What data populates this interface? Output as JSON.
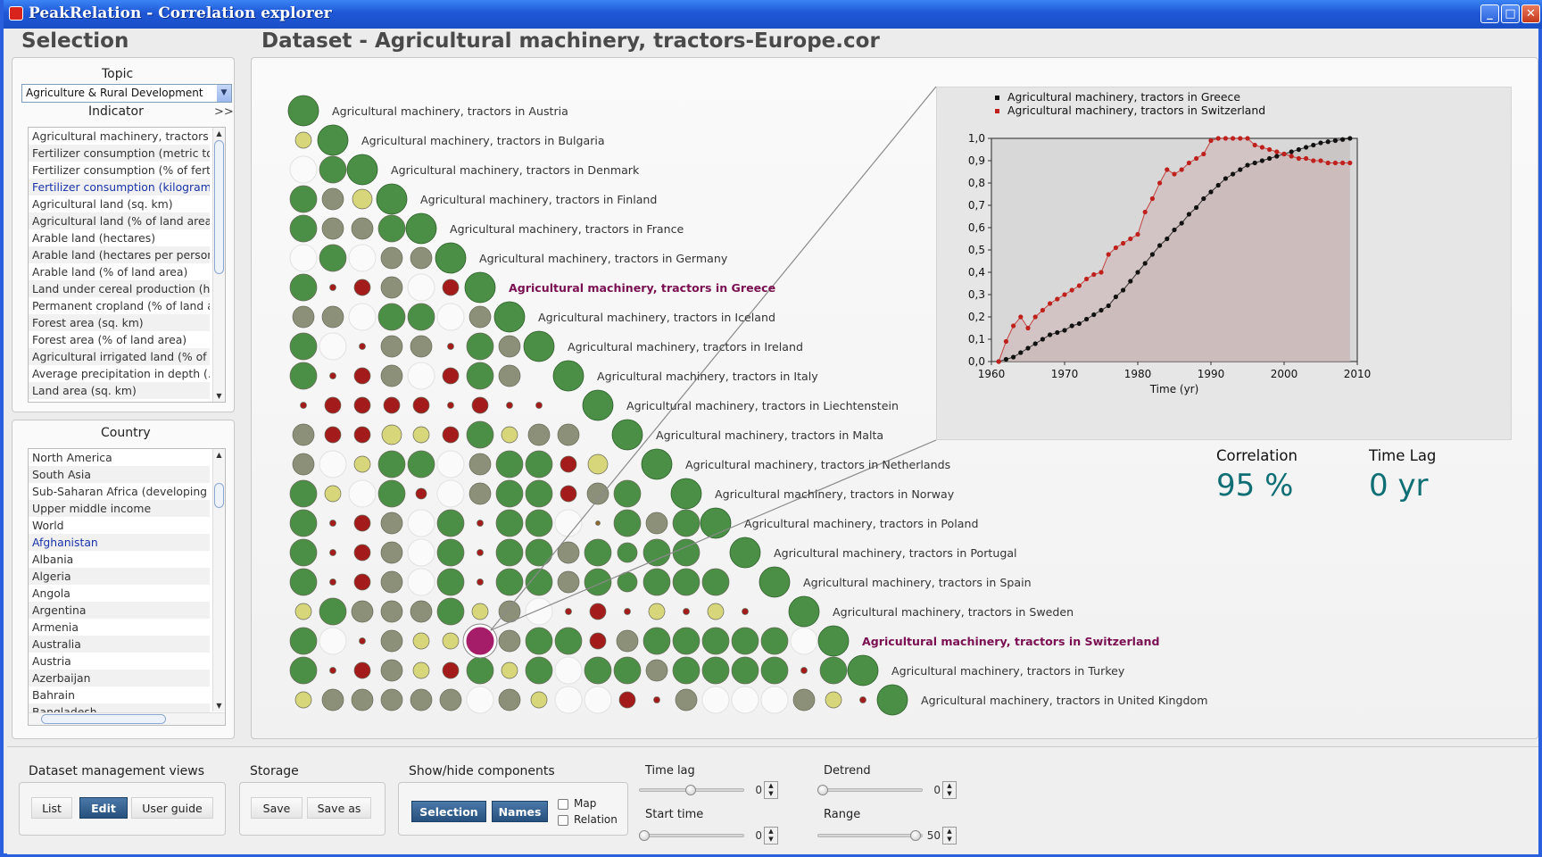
{
  "window": {
    "title": "PeakRelation - Correlation explorer"
  },
  "selection": {
    "heading": "Selection",
    "topic_label": "Topic",
    "topic_value": "Agriculture & Rural Development",
    "indicator_label": "Indicator",
    "indicator_expand": ">>",
    "indicators": [
      "Agricultural machinery, tractors",
      "Fertilizer consumption (metric tons)",
      "Fertilizer consumption (% of fertil...",
      "Fertilizer consumption (kilograms ...",
      "Agricultural land (sq. km)",
      "Agricultural land (% of land area)",
      "Arable land (hectares)",
      "Arable land (hectares per person)",
      "Arable land (% of land area)",
      "Land under cereal production (h...",
      "Permanent cropland (% of land a...",
      "Forest area (sq. km)",
      "Forest area (% of land area)",
      "Agricultural irrigated land (% of t...",
      "Average precipitation in depth (...",
      "Land area (sq. km)"
    ],
    "country_label": "Country",
    "countries": [
      "North America",
      "South Asia",
      "Sub-Saharan Africa (developing only)",
      "Upper middle income",
      "World",
      "Afghanistan",
      "Albania",
      "Algeria",
      "Angola",
      "Argentina",
      "Armenia",
      "Australia",
      "Austria",
      "Azerbaijan",
      "Bahrain",
      "Bangladesh"
    ]
  },
  "dataset": {
    "heading": "Dataset - Agricultural machinery, tractors-Europe.cor",
    "series_names": [
      "Agricultural machinery, tractors in Austria",
      "Agricultural machinery, tractors in Bulgaria",
      "Agricultural machinery, tractors in Denmark",
      "Agricultural machinery, tractors in Finland",
      "Agricultural machinery, tractors in France",
      "Agricultural machinery, tractors in Germany",
      "Agricultural machinery, tractors in Greece",
      "Agricultural machinery, tractors in Iceland",
      "Agricultural machinery, tractors in Ireland",
      "Agricultural machinery, tractors in Italy",
      "Agricultural machinery, tractors in Liechtenstein",
      "Agricultural machinery, tractors in Malta",
      "Agricultural machinery, tractors in Netherlands",
      "Agricultural machinery, tractors in Norway",
      "Agricultural machinery, tractors in Poland",
      "Agricultural machinery, tractors in Portugal",
      "Agricultural machinery, tractors in Spain",
      "Agricultural machinery, tractors in Sweden",
      "Agricultural machinery, tractors in Switzerland",
      "Agricultural machinery, tractors in Turkey",
      "Agricultural machinery, tractors in United Kingdom"
    ],
    "highlighted": [
      6,
      18
    ],
    "matrix": [
      "",
      "y",
      "wo",
      "olY",
      "ollo",
      "wowll",
      "odRlwR",
      "llwoowl",
      "owdlldol",
      "odRlwRol",
      "dRRRRdRdd",
      "lRRYyRoyll",
      "lwyoowlooRY",
      "oyworwlooRlo",
      "odRlwodoowtolo",
      "odRlwodooloOoo",
      "odRlwodooloOooo",
      "yollloylwdRdydyd",
      "owdlyyOlooRlooooow",
      "odRlyRoyowooloooodo",
      "ylllllwlywwRdlwwwlyd"
    ],
    "selected_cell": [
      18,
      6
    ],
    "colors": {
      "green": "#4a8f45",
      "grey": "#8d9078",
      "yellow": "#d8d67a",
      "red": "#a41b1b",
      "magenta": "#a51c68",
      "highlight_text": "#7a1052"
    }
  },
  "chart_data": {
    "type": "line",
    "title": "",
    "xlabel": "Time (yr)",
    "ylabel": "",
    "xlim": [
      1960,
      2010
    ],
    "ylim": [
      0.0,
      1.0
    ],
    "x_ticks": [
      "1960",
      "1970",
      "1980",
      "1990",
      "2000",
      "2010"
    ],
    "y_ticks": [
      "0,0",
      "0,1",
      "0,2",
      "0,3",
      "0,4",
      "0,5",
      "0,6",
      "0,7",
      "0,8",
      "0,9",
      "1,0"
    ],
    "series": [
      {
        "name": "Agricultural machinery, tractors in Greece",
        "color": "#111111",
        "x": [
          1961,
          1962,
          1963,
          1964,
          1965,
          1966,
          1967,
          1968,
          1969,
          1970,
          1971,
          1972,
          1973,
          1974,
          1975,
          1976,
          1977,
          1978,
          1979,
          1980,
          1981,
          1982,
          1983,
          1984,
          1985,
          1986,
          1987,
          1988,
          1989,
          1990,
          1991,
          1992,
          1993,
          1994,
          1995,
          1996,
          1997,
          1998,
          1999,
          2000,
          2001,
          2002,
          2003,
          2004,
          2005,
          2006,
          2007,
          2008,
          2009
        ],
        "values": [
          0.0,
          0.01,
          0.02,
          0.04,
          0.06,
          0.08,
          0.1,
          0.12,
          0.13,
          0.14,
          0.16,
          0.17,
          0.19,
          0.21,
          0.23,
          0.25,
          0.29,
          0.32,
          0.36,
          0.4,
          0.44,
          0.48,
          0.52,
          0.55,
          0.59,
          0.62,
          0.66,
          0.69,
          0.73,
          0.76,
          0.79,
          0.82,
          0.84,
          0.86,
          0.88,
          0.89,
          0.9,
          0.91,
          0.92,
          0.93,
          0.94,
          0.95,
          0.96,
          0.97,
          0.98,
          0.985,
          0.99,
          0.995,
          1.0
        ]
      },
      {
        "name": "Agricultural machinery, tractors in Switzerland",
        "color": "#c0201c",
        "x": [
          1961,
          1962,
          1963,
          1964,
          1965,
          1966,
          1967,
          1968,
          1969,
          1970,
          1971,
          1972,
          1973,
          1974,
          1975,
          1976,
          1977,
          1978,
          1979,
          1980,
          1981,
          1982,
          1983,
          1984,
          1985,
          1986,
          1987,
          1988,
          1989,
          1990,
          1991,
          1992,
          1993,
          1994,
          1995,
          1996,
          1997,
          1998,
          1999,
          2000,
          2001,
          2002,
          2003,
          2004,
          2005,
          2006,
          2007,
          2008,
          2009
        ],
        "values": [
          0.0,
          0.09,
          0.16,
          0.2,
          0.15,
          0.2,
          0.23,
          0.26,
          0.28,
          0.3,
          0.32,
          0.34,
          0.37,
          0.39,
          0.4,
          0.48,
          0.51,
          0.53,
          0.55,
          0.57,
          0.67,
          0.73,
          0.8,
          0.86,
          0.84,
          0.86,
          0.89,
          0.91,
          0.93,
          0.99,
          1.0,
          1.0,
          1.0,
          1.0,
          1.0,
          0.97,
          0.96,
          0.95,
          0.94,
          0.93,
          0.92,
          0.91,
          0.91,
          0.9,
          0.9,
          0.89,
          0.89,
          0.89,
          0.89
        ]
      }
    ],
    "legend_position": "top-left",
    "grid": false
  },
  "stats": {
    "correlation_label": "Correlation",
    "correlation_value": "95 %",
    "timelag_label": "Time Lag",
    "timelag_value": "0 yr"
  },
  "toolbar": {
    "dataset_views_label": "Dataset management views",
    "list_btn": "List",
    "edit_btn": "Edit",
    "guide_btn": "User guide",
    "storage_label": "Storage",
    "save_btn": "Save",
    "saveas_btn": "Save as",
    "showhide_label": "Show/hide components",
    "selection_btn": "Selection",
    "names_btn": "Names",
    "map_chk": "Map",
    "relation_chk": "Relation",
    "timelag_label": "Time lag",
    "timelag_val": "0",
    "detrend_label": "Detrend",
    "detrend_val": "0",
    "starttime_label": "Start time",
    "starttime_val": "0",
    "range_label": "Range",
    "range_val": "50"
  }
}
